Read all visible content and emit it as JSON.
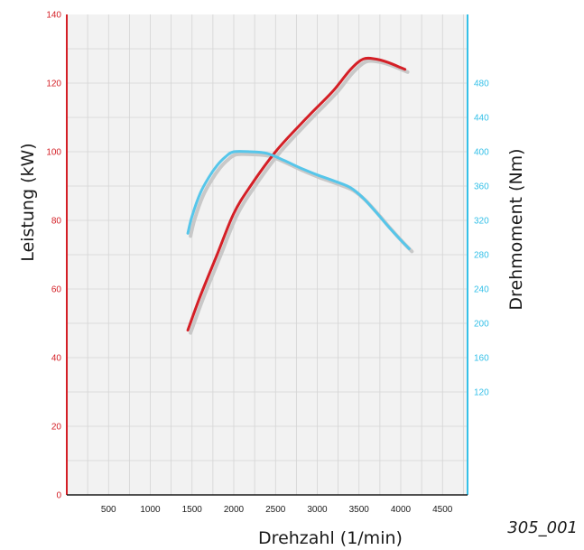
{
  "chart_data": {
    "type": "line",
    "xlabel": "Drehzahl (1/min)",
    "ylabel_left": "Leistung (kW)",
    "ylabel_right": "Drehmoment (Nm)",
    "x_ticks": [
      "500",
      "1000",
      "1500",
      "2000",
      "2500",
      "3000",
      "3500",
      "4000",
      "4500"
    ],
    "xlim": [
      0,
      4800
    ],
    "y_left_ticks": [
      "0",
      "20",
      "40",
      "60",
      "80",
      "100",
      "120",
      "140"
    ],
    "ylim_left": [
      0,
      140
    ],
    "y_right_ticks": [
      "120",
      "160",
      "200",
      "240",
      "280",
      "320",
      "360",
      "400",
      "440",
      "480"
    ],
    "ylim_right": [
      0,
      560
    ],
    "grid": true,
    "figure_id": "305_001",
    "colors": {
      "power": "#d41f26",
      "torque": "#56c6ea",
      "left_axis": "#d41f26",
      "right_axis": "#34c0e8",
      "plot_bg": "#f2f2f2",
      "grid": "#d4d4d4",
      "shadow": "#c8c8c8"
    },
    "series": [
      {
        "key": "power",
        "axis": "left",
        "x": [
          1450,
          1600,
          1800,
          2000,
          2200,
          2500,
          2800,
          3000,
          3200,
          3400,
          3550,
          3700,
          3850,
          4000,
          4050
        ],
        "y": [
          48,
          58,
          70,
          82,
          90,
          100,
          108,
          113,
          118,
          124,
          127,
          127,
          126,
          124.5,
          124
        ]
      },
      {
        "key": "torque",
        "axis": "right",
        "x": [
          1450,
          1500,
          1600,
          1700,
          1800,
          1900,
          2000,
          2200,
          2400,
          2600,
          2800,
          3000,
          3200,
          3400,
          3550,
          3700,
          3850,
          4000,
          4100
        ],
        "y": [
          305,
          325,
          352,
          370,
          384,
          394,
          400,
          400,
          398,
          390,
          381,
          373,
          366,
          358,
          346,
          330,
          313,
          297,
          287
        ]
      }
    ]
  }
}
